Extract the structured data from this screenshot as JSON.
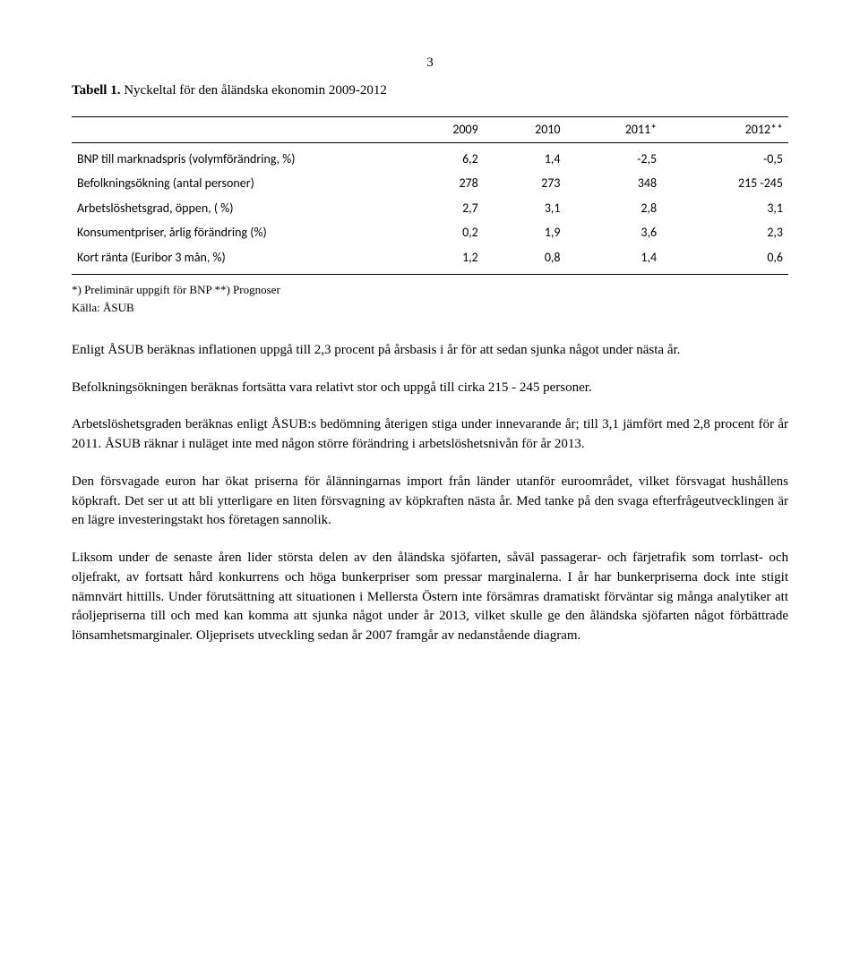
{
  "page_number": "3",
  "caption_bold": "Tabell 1.",
  "caption_rest": " Nyckeltal för den åländska ekonomin 2009-2012",
  "table": {
    "columns": [
      "",
      "2009",
      "2010",
      "2011*",
      "2012**"
    ],
    "rows": [
      {
        "label": "BNP till marknadspris (volymförändring, %)",
        "c1": "6,2",
        "c2": "1,4",
        "c3": "-2,5",
        "c4": "-0,5"
      },
      {
        "label": "Befolkningsökning (antal personer)",
        "c1": "278",
        "c2": "273",
        "c3": "348",
        "c4": "215 -245"
      },
      {
        "label": "Arbetslöshetsgrad, öppen, ( %)",
        "c1": "2,7",
        "c2": "3,1",
        "c3": "2,8",
        "c4": "3,1"
      },
      {
        "label": "Konsumentpriser, årlig förändring (%)",
        "c1": "0,2",
        "c2": "1,9",
        "c3": "3,6",
        "c4": "2,3"
      },
      {
        "label": "Kort ränta (Euribor 3 mån, %)",
        "c1": "1,2",
        "c2": "0,8",
        "c3": "1,4",
        "c4": "0,6"
      }
    ],
    "col_widths": [
      "46%",
      "13.5%",
      "13.5%",
      "13.5%",
      "13.5%"
    ],
    "border_color": "#000000",
    "font_family": "Calibri",
    "fontsize": 14
  },
  "footnote1": "*) Preliminär uppgift för BNP **) Prognoser",
  "footnote2": "Källa: ÅSUB",
  "paragraphs": [
    "Enligt ÅSUB beräknas inflationen uppgå till 2,3 procent på årsbasis i år för att sedan sjunka något under nästa år.",
    "Befolkningsökningen beräknas fortsätta vara relativt stor och uppgå till cirka 215 - 245 personer.",
    "Arbetslöshetsgraden beräknas enligt ÅSUB:s bedömning återigen stiga under innevarande år; till 3,1 jämfört med 2,8 procent för år 2011. ÅSUB räknar i nuläget inte med någon större förändring i arbetslöshetsnivån för år 2013.",
    "Den försvagade euron har ökat priserna för ålänningarnas import från länder utanför euroområdet, vilket försvagat hushållens köpkraft. Det ser ut att bli ytterligare en liten försvagning av köpkraften nästa år. Med tanke på den svaga efterfrågeutvecklingen är en lägre investeringstakt hos företagen sannolik.",
    "Liksom under de senaste åren lider största delen av den åländska sjöfarten, såväl passagerar- och färjetrafik som torrlast- och oljefrakt, av fortsatt hård konkurrens och höga bunkerpriser som pressar marginalerna. I år har bunkerpriserna dock inte stigit nämnvärt hittills. Under förutsättning att situationen i Mellersta Östern inte försämras dramatiskt förväntar sig många analytiker att råoljepriserna till och med kan komma att sjunka något under år 2013, vilket skulle ge den åländska sjöfarten något förbättrade lönsamhetsmarginaler. Oljeprisets utveckling sedan år 2007 framgår av nedanstående diagram."
  ],
  "body_font": "Times New Roman",
  "body_fontsize": 15,
  "background_color": "#ffffff",
  "text_color": "#000000"
}
